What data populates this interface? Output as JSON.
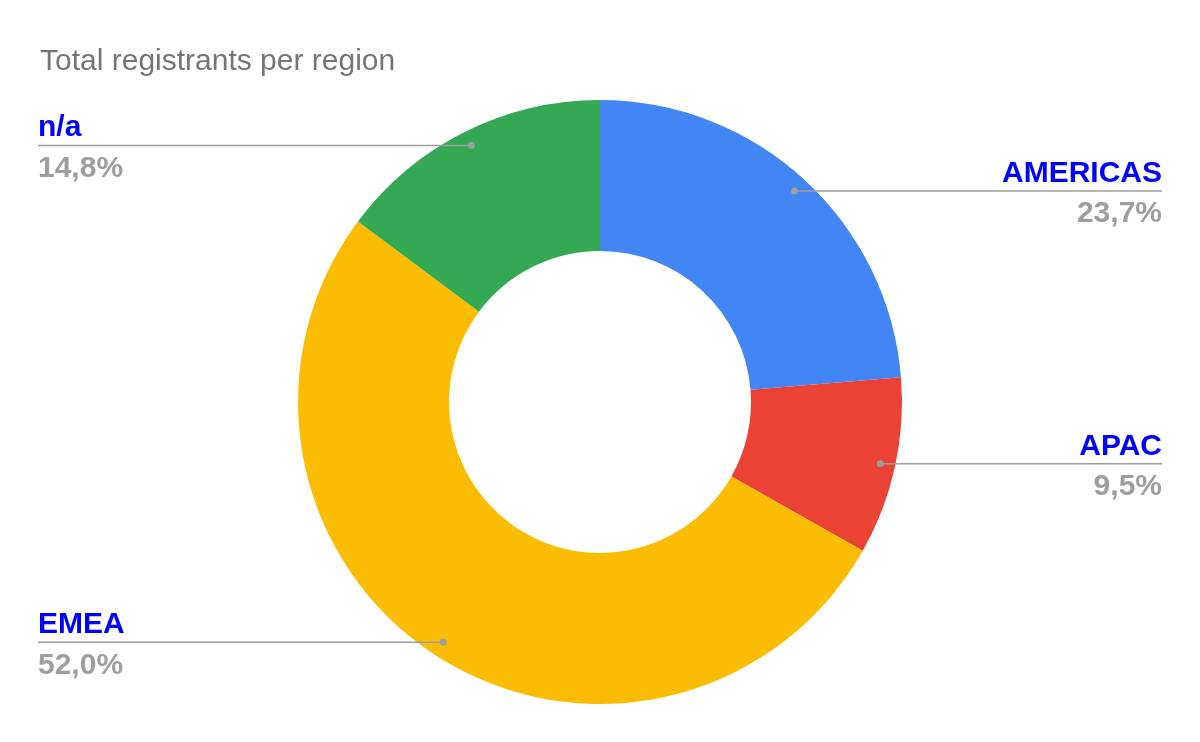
{
  "chart_data": {
    "type": "doughnut",
    "title": "Total registrants per region",
    "categories": [
      "AMERICAS",
      "APAC",
      "EMEA",
      "n/a"
    ],
    "values": [
      23.7,
      9.5,
      52.0,
      14.8
    ],
    "value_labels": [
      "23,7%",
      "9,5%",
      "52,0%",
      "14,8%"
    ],
    "colors": [
      "#4285f4",
      "#ea4335",
      "#fbbc04",
      "#34a853"
    ],
    "data_labels": true
  }
}
